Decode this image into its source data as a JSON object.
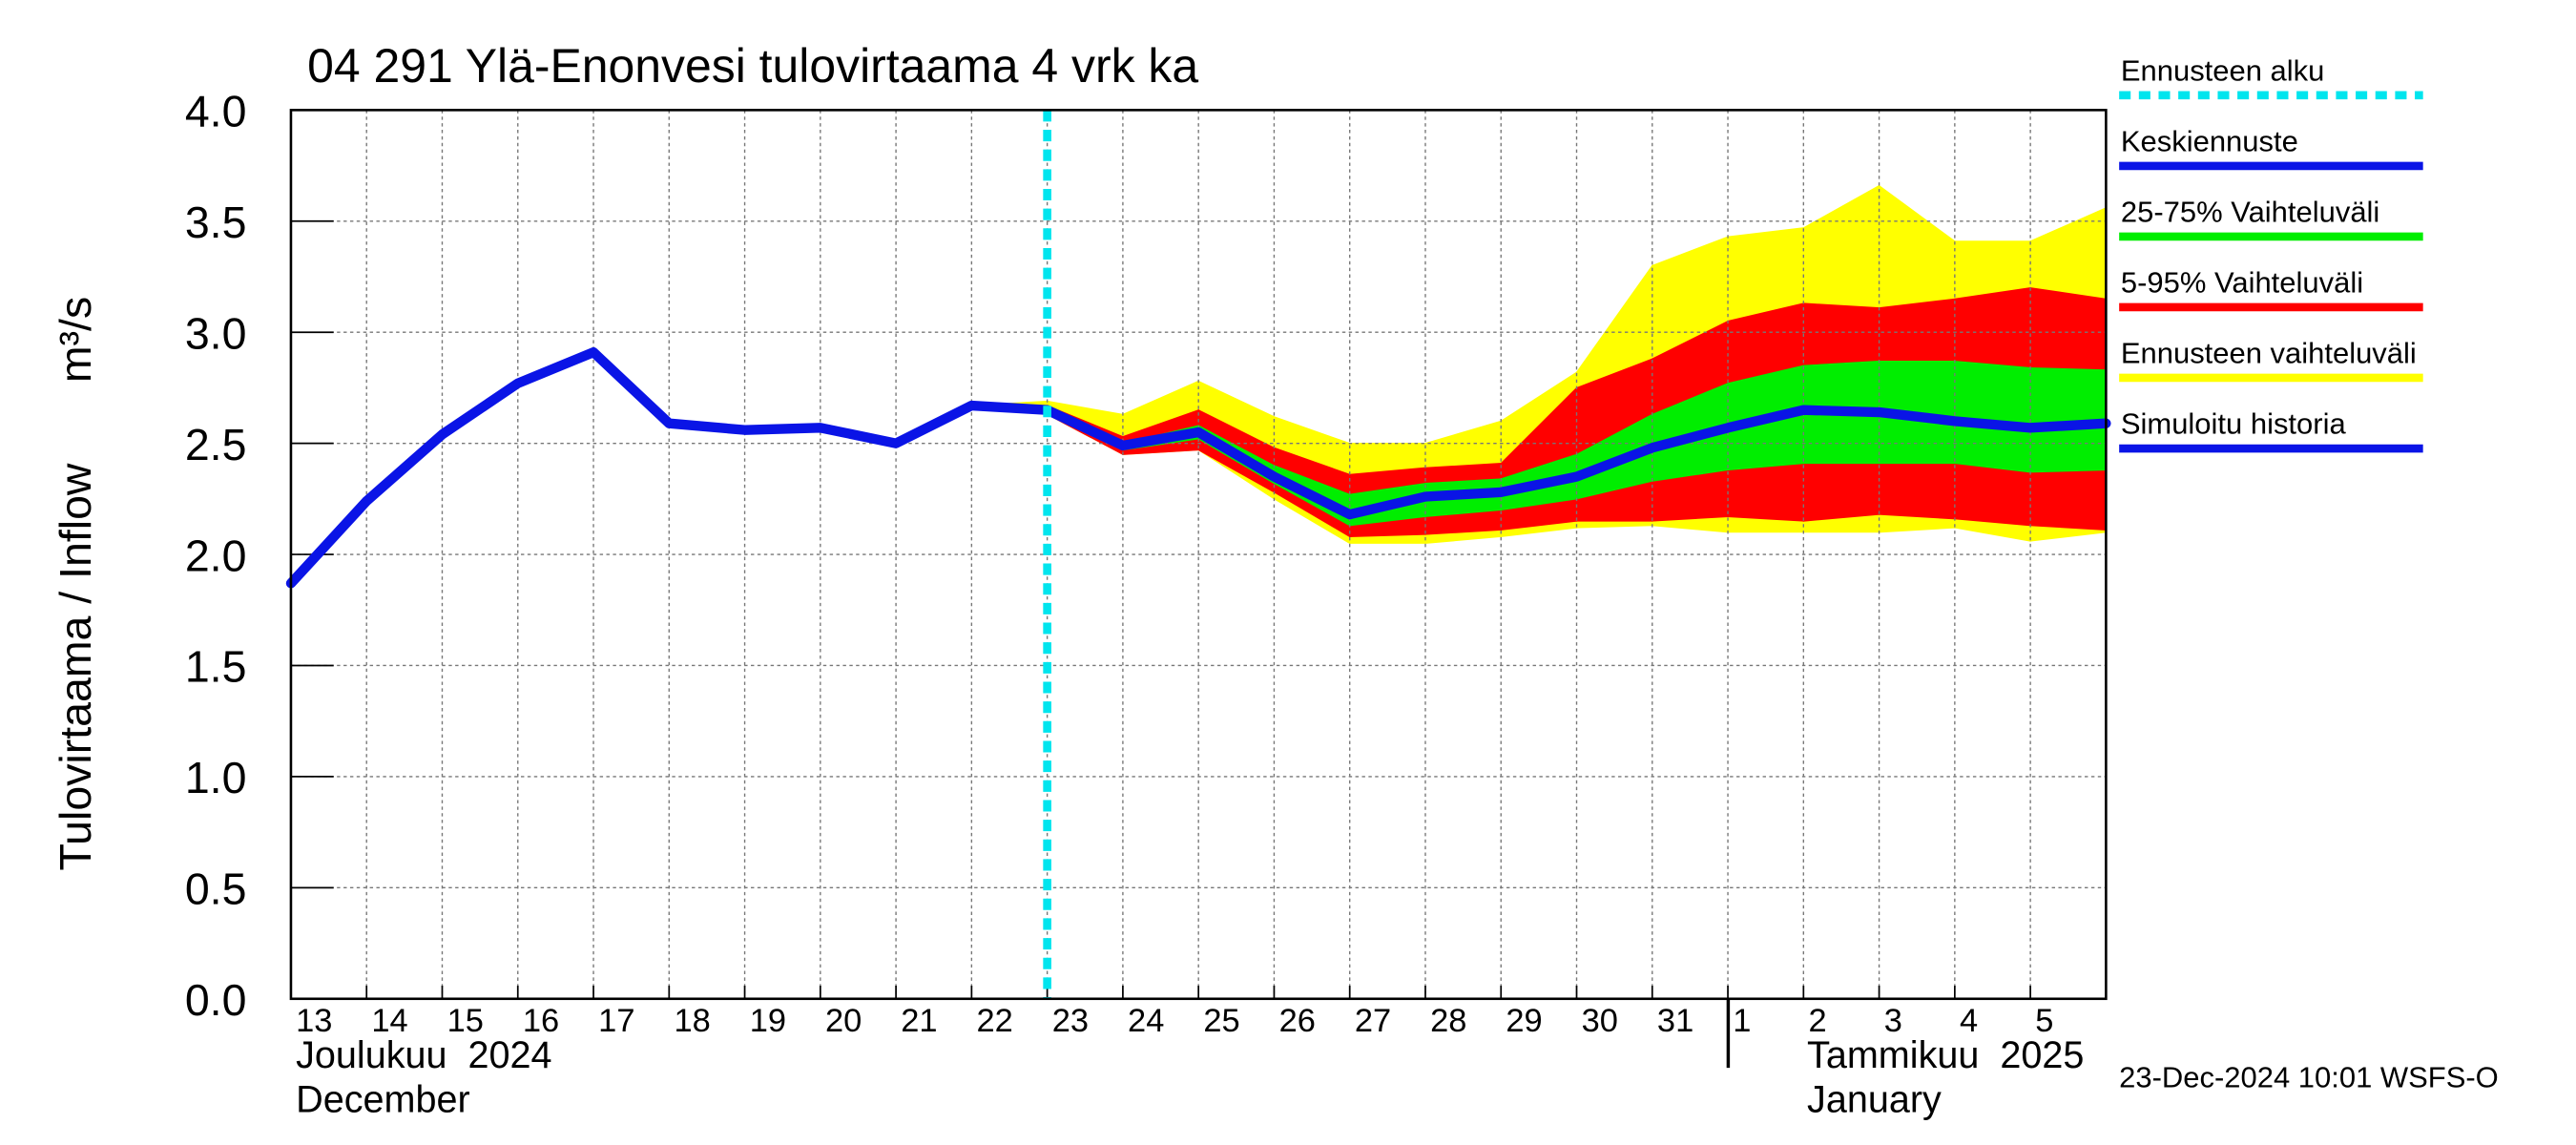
{
  "chart_data": {
    "type": "line",
    "title": "04 291 Ylä-Enonvesi tulovirtaama 4 vrk ka",
    "y_label": "Tulovirtaama / Inflow",
    "y_unit": "m³/s",
    "month_labels": [
      "Joulukuu  2024",
      "December",
      "Tammikuu  2025",
      "January"
    ],
    "timestamp": "23-Dec-2024 10:01 WSFS-O",
    "categories": [
      "13",
      "14",
      "15",
      "16",
      "17",
      "18",
      "19",
      "20",
      "21",
      "22",
      "23",
      "24",
      "25",
      "26",
      "27",
      "28",
      "29",
      "30",
      "31",
      "1",
      "2",
      "3",
      "4",
      "5",
      null
    ],
    "ylim": [
      0,
      4
    ],
    "yticks": [
      {
        "value": 0,
        "label": "0.0"
      },
      {
        "value": 0.5,
        "label": "0.5"
      },
      {
        "value": 1,
        "label": "1.0"
      },
      {
        "value": 1.5,
        "label": "1.5"
      },
      {
        "value": 2,
        "label": "2.0"
      },
      {
        "value": 2.5,
        "label": "2.5"
      },
      {
        "value": 3,
        "label": "3.0"
      },
      {
        "value": 3.5,
        "label": "3.5"
      },
      {
        "value": 4,
        "label": "4.0"
      }
    ],
    "grid": true,
    "series": [
      {
        "name": "Ennusteen alku",
        "color": "#00e5ee",
        "style": "dashed",
        "at": 10
      },
      {
        "name": "Keskiennuste",
        "color": "#0a14e6",
        "values": [
          null,
          null,
          null,
          null,
          null,
          null,
          null,
          null,
          null,
          null,
          2.65,
          2.49,
          2.55,
          2.35,
          2.18,
          2.26,
          2.28,
          2.35,
          2.48,
          2.57,
          2.65,
          2.64,
          2.6,
          2.57,
          2.59
        ]
      },
      {
        "name": "25-75% Vaihteluväli",
        "color": "#00ee00",
        "values": [
          null,
          null,
          null,
          null,
          null,
          null,
          null,
          null,
          null,
          2.67,
          2.65,
          2.5,
          2.58,
          2.4,
          2.27,
          2.32,
          2.34,
          2.45,
          2.63,
          2.77,
          2.85,
          2.87,
          2.87,
          2.84,
          2.83
        ],
        "lower": [
          null,
          null,
          null,
          null,
          null,
          null,
          null,
          null,
          null,
          2.67,
          2.64,
          2.47,
          2.52,
          2.32,
          2.13,
          2.17,
          2.2,
          2.25,
          2.33,
          2.38,
          2.41,
          2.41,
          2.41,
          2.37,
          2.38
        ]
      },
      {
        "name": "5-95% Vaihteluväli",
        "color": "#ff0000",
        "values": [
          null,
          null,
          null,
          null,
          null,
          null,
          null,
          null,
          null,
          2.67,
          2.67,
          2.53,
          2.65,
          2.48,
          2.36,
          2.39,
          2.41,
          2.75,
          2.88,
          3.05,
          3.13,
          3.11,
          3.15,
          3.2,
          3.15
        ],
        "lower": [
          null,
          null,
          null,
          null,
          null,
          null,
          null,
          null,
          null,
          2.67,
          2.63,
          2.45,
          2.47,
          2.28,
          2.08,
          2.09,
          2.11,
          2.15,
          2.15,
          2.17,
          2.15,
          2.18,
          2.16,
          2.13,
          2.11
        ]
      },
      {
        "name": "Ennusteen vaihteluväli",
        "color": "#ffff00",
        "values": [
          null,
          null,
          null,
          null,
          null,
          null,
          null,
          null,
          null,
          2.67,
          2.69,
          2.63,
          2.78,
          2.62,
          2.5,
          2.5,
          2.6,
          2.82,
          3.3,
          3.43,
          3.47,
          3.66,
          3.41,
          3.41,
          3.56
        ],
        "lower": [
          null,
          null,
          null,
          null,
          null,
          null,
          null,
          null,
          null,
          2.67,
          2.63,
          2.45,
          2.47,
          2.25,
          2.05,
          2.05,
          2.08,
          2.12,
          2.13,
          2.1,
          2.1,
          2.1,
          2.12,
          2.06,
          2.1
        ]
      },
      {
        "name": "Simuloitu historia",
        "color": "#0a14e6",
        "values": [
          1.87,
          2.24,
          2.54,
          2.77,
          2.91,
          2.59,
          2.56,
          2.57,
          2.5,
          2.67,
          2.65,
          null,
          null,
          null,
          null,
          null,
          null,
          null,
          null,
          null,
          null,
          null,
          null,
          null,
          null
        ]
      }
    ]
  }
}
